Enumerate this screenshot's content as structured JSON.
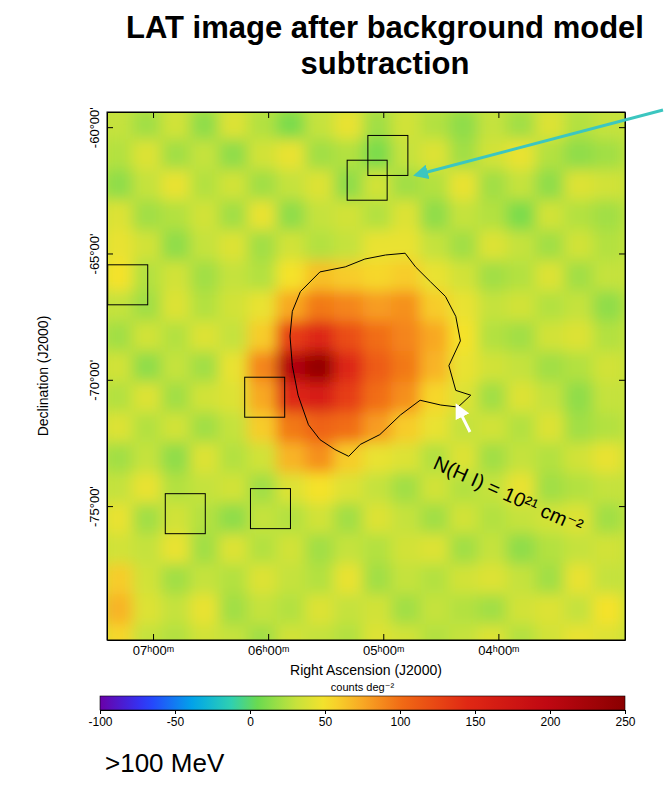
{
  "chart_data": {
    "type": "heatmap",
    "title": "LAT image after background model subtraction",
    "subtitle": ">100 MeV",
    "x_label": "Right Ascension (J2000)",
    "y_label": "Declination (J2000)",
    "xlim": [
      7.4,
      2.9
    ],
    "ylim": [
      -80.3,
      -59.4
    ],
    "xticks": [
      {
        "value": 7,
        "label": "07ʰ00ᵐ"
      },
      {
        "value": 6,
        "label": "06ʰ00ᵐ"
      },
      {
        "value": 5,
        "label": "05ʰ00ᵐ"
      },
      {
        "value": 4,
        "label": "04ʰ00ᵐ"
      }
    ],
    "yticks": [
      {
        "value": -60,
        "label": "-60°00'"
      },
      {
        "value": -65,
        "label": "-65°00'"
      },
      {
        "value": -70,
        "label": "-70°00'"
      },
      {
        "value": -75,
        "label": "-75°00'"
      }
    ],
    "x": [
      7.3,
      7.05,
      6.8,
      6.55,
      6.3,
      6.05,
      5.8,
      5.55,
      5.3,
      5.05,
      4.8,
      4.55,
      4.3,
      4.05,
      3.8,
      3.55,
      3.3,
      3.05
    ],
    "y": [
      -59.9,
      -61.1,
      -62.3,
      -63.5,
      -64.7,
      -65.9,
      -67.1,
      -68.3,
      -69.5,
      -70.7,
      -71.9,
      -73.1,
      -74.3,
      -75.5,
      -76.7,
      -77.9,
      -79.1,
      -80.3
    ],
    "z": [
      [
        30,
        20,
        35,
        15,
        40,
        25,
        10,
        30,
        45,
        20,
        35,
        25,
        15,
        30,
        20,
        40,
        25,
        30
      ],
      [
        25,
        40,
        20,
        30,
        15,
        35,
        45,
        20,
        25,
        10,
        30,
        40,
        20,
        35,
        45,
        25,
        15,
        20
      ],
      [
        15,
        30,
        45,
        25,
        35,
        20,
        30,
        40,
        15,
        35,
        20,
        25,
        45,
        20,
        30,
        15,
        40,
        35
      ],
      [
        40,
        20,
        25,
        35,
        20,
        45,
        15,
        30,
        35,
        25,
        40,
        15,
        30,
        25,
        10,
        35,
        25,
        20
      ],
      [
        45,
        35,
        15,
        30,
        40,
        20,
        35,
        25,
        30,
        45,
        45,
        30,
        20,
        40,
        30,
        20,
        35,
        25
      ],
      [
        50,
        25,
        35,
        20,
        30,
        25,
        50,
        65,
        60,
        55,
        60,
        45,
        35,
        20,
        25,
        40,
        20,
        30
      ],
      [
        30,
        20,
        40,
        25,
        35,
        45,
        75,
        95,
        90,
        80,
        85,
        60,
        45,
        30,
        35,
        25,
        30,
        15
      ],
      [
        20,
        35,
        25,
        40,
        30,
        60,
        130,
        150,
        120,
        100,
        90,
        75,
        50,
        25,
        20,
        35,
        40,
        25
      ],
      [
        35,
        15,
        30,
        20,
        45,
        90,
        210,
        240,
        150,
        110,
        95,
        70,
        45,
        35,
        30,
        20,
        25,
        35
      ],
      [
        25,
        40,
        20,
        35,
        40,
        75,
        150,
        160,
        130,
        100,
        85,
        55,
        40,
        20,
        40,
        30,
        15,
        30
      ],
      [
        40,
        25,
        35,
        20,
        30,
        60,
        95,
        105,
        100,
        80,
        60,
        45,
        30,
        35,
        25,
        40,
        20,
        25
      ],
      [
        20,
        30,
        15,
        40,
        25,
        35,
        70,
        85,
        60,
        45,
        40,
        25,
        40,
        20,
        30,
        25,
        35,
        45
      ],
      [
        30,
        45,
        25,
        30,
        35,
        20,
        40,
        50,
        40,
        30,
        20,
        35,
        25,
        30,
        45,
        20,
        25,
        30
      ],
      [
        45,
        20,
        35,
        25,
        15,
        30,
        25,
        35,
        20,
        40,
        30,
        20,
        35,
        25,
        30,
        35,
        40,
        20
      ],
      [
        35,
        30,
        45,
        20,
        40,
        25,
        35,
        20,
        30,
        25,
        35,
        40,
        20,
        30,
        15,
        25,
        30,
        35
      ],
      [
        60,
        35,
        20,
        30,
        25,
        40,
        30,
        25,
        45,
        20,
        30,
        25,
        35,
        40,
        30,
        20,
        45,
        30
      ],
      [
        70,
        40,
        30,
        45,
        20,
        30,
        25,
        40,
        30,
        35,
        20,
        30,
        25,
        20,
        35,
        40,
        30,
        50
      ],
      [
        55,
        30,
        25,
        35,
        30,
        20,
        35,
        30,
        25,
        40,
        35,
        25,
        30,
        40,
        25,
        35,
        45,
        40
      ]
    ],
    "colorbar": {
      "label": "counts deg⁻²",
      "lim": [
        -100,
        250
      ],
      "ticks": [
        -100,
        -50,
        0,
        50,
        100,
        150,
        200,
        250
      ]
    },
    "contour": {
      "label": "N(H I) = 10²¹ cm⁻²",
      "x": [
        5.72,
        5.55,
        5.33,
        5.16,
        4.98,
        4.81,
        4.72,
        4.59,
        4.46,
        4.37,
        4.33,
        4.43,
        4.37,
        4.24,
        4.35,
        4.5,
        4.68,
        4.85,
        5.03,
        5.2,
        5.3,
        5.42,
        5.55,
        5.65,
        5.74,
        5.79,
        5.81,
        5.79
      ],
      "y": [
        -66.51,
        -65.73,
        -65.53,
        -65.22,
        -65.06,
        -64.99,
        -65.53,
        -66.12,
        -66.7,
        -67.49,
        -68.46,
        -69.44,
        -70.42,
        -70.61,
        -71.08,
        -71.0,
        -70.81,
        -71.39,
        -72.17,
        -72.56,
        -73.03,
        -72.76,
        -72.37,
        -71.78,
        -70.61,
        -69.44,
        -68.27,
        -67.29
      ]
    },
    "boxes": {
      "x": [
        4.96,
        5.14,
        7.22,
        6.03,
        6.72,
        5.98
      ],
      "y": [
        -61.12,
        -62.1,
        -66.24,
        -70.69,
        -75.3,
        -75.1
      ]
    }
  }
}
